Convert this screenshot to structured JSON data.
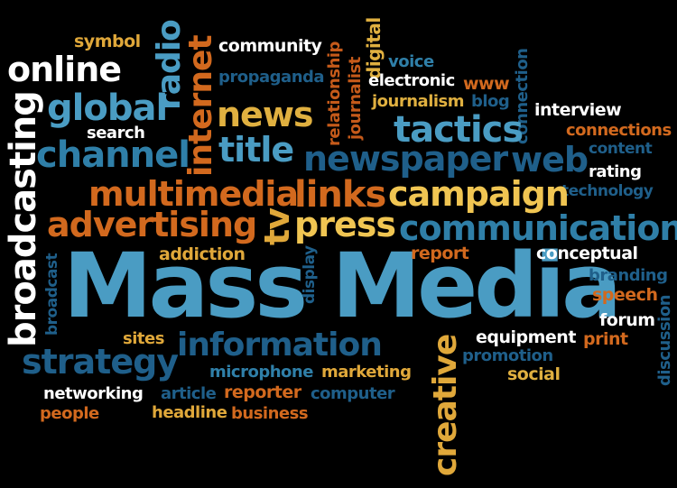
{
  "palette": {
    "background": "#000000",
    "white": "#ffffff",
    "light_blue": "#4a9cc3",
    "mid_blue": "#2f7fa8",
    "dark_blue": "#1f5f8a",
    "orange": "#d2691e",
    "dark_orange": "#c55a1a",
    "gold": "#e0b040",
    "light_gold": "#f0c552"
  },
  "words": {
    "mass_media": "Mass Media",
    "symbol": "symbol",
    "online": "online",
    "radio": "radio",
    "community": "community",
    "relationship": "relationship",
    "journalist": "journalist",
    "digital": "digital",
    "voice": "voice",
    "electronic": "electronic",
    "www": "www",
    "connection": "connection",
    "blog": "blog",
    "global": "global",
    "internet": "internet",
    "propaganda": "propaganda",
    "news": "news",
    "journalism": "journalism",
    "interview": "interview",
    "connections": "connections",
    "content": "content",
    "search": "search",
    "channel": "channel",
    "title": "title",
    "tactics": "tactics",
    "newspaper": "newspaper",
    "web": "web",
    "rating": "rating",
    "technology": "technology",
    "broadcasting": "broadcasting",
    "multimedia": "multimedia",
    "links": "links",
    "campaign": "campaign",
    "advertising": "advertising",
    "tv": "tv",
    "press": "press",
    "communication": "communication",
    "broadcast": "broadcast",
    "display": "display",
    "addiction": "addiction",
    "report": "report",
    "conceptual": "conceptual",
    "branding": "branding",
    "speech": "speech",
    "discussion": "discussion",
    "forum": "forum",
    "sites": "sites",
    "information": "information",
    "creative": "creative",
    "equipment": "equipment",
    "print": "print",
    "strategy": "strategy",
    "promotion": "promotion",
    "microphone": "microphone",
    "marketing": "marketing",
    "social": "social",
    "networking": "networking",
    "article": "article",
    "reporter": "reporter",
    "computer": "computer",
    "people": "people",
    "headline": "headline",
    "business": "business"
  }
}
